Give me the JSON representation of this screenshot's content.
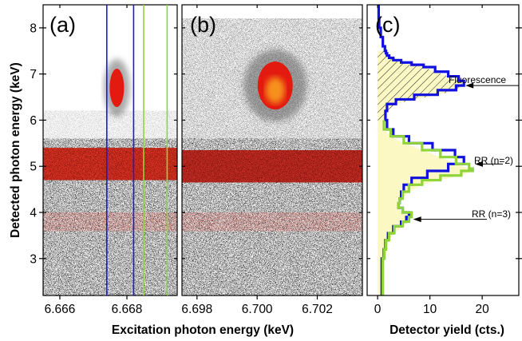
{
  "chart_data": [
    {
      "type": "heatmap",
      "panel_label": "(a)",
      "xlim": [
        6.6655,
        6.6695
      ],
      "ylim": [
        2.2,
        8.5
      ],
      "x_ticks": [
        "6.666",
        "6.668"
      ],
      "x_tick_values": [
        6.666,
        6.668
      ],
      "y_ticks": [
        "3",
        "4",
        "5",
        "6",
        "7",
        "8"
      ],
      "y_tick_values": [
        3,
        4,
        5,
        6,
        7,
        8
      ],
      "ylabel": "Detected photon energy (keV)",
      "gates": [
        {
          "color": "#1a1adb",
          "x": [
            6.6674,
            6.6682
          ]
        },
        {
          "color": "#8fd43a",
          "x": [
            6.6685,
            6.6692
          ]
        }
      ],
      "features": [
        {
          "kind": "band",
          "y_center": 5.05,
          "y_halfwidth": 0.35,
          "color": "#e02010"
        },
        {
          "kind": "spot",
          "x": 6.6677,
          "y": 6.7,
          "color": "#e52510"
        }
      ]
    },
    {
      "type": "heatmap",
      "panel_label": "(b)",
      "xlim": [
        6.6975,
        6.7035
      ],
      "ylim": [
        2.2,
        8.5
      ],
      "x_ticks": [
        "6.698",
        "6.700",
        "6.702"
      ],
      "x_tick_values": [
        6.698,
        6.7,
        6.702
      ],
      "xlabel": "Excitation photon energy (keV)",
      "features": [
        {
          "kind": "band",
          "y_center": 5.0,
          "y_halfwidth": 0.35,
          "color": "#c81a10"
        },
        {
          "kind": "spot",
          "x": 6.7006,
          "y": 6.75,
          "color": "#f07a10"
        }
      ]
    },
    {
      "type": "line",
      "panel_label": "(c)",
      "xlim": [
        -2,
        27
      ],
      "ylim": [
        2.2,
        8.5
      ],
      "x_ticks": [
        "0",
        "10",
        "20"
      ],
      "x_tick_values": [
        0,
        10,
        20
      ],
      "xlabel": "Detector yield (cts.)",
      "series": [
        {
          "color": "#1010e0",
          "x": [
            0.1,
            0.2,
            0.3,
            0.6,
            1.0,
            1.4,
            1.6,
            1.8,
            2.2,
            3.0,
            4.5,
            6.5,
            8.8,
            11.0,
            13.5,
            15.5,
            16.5,
            15.0,
            11.5,
            7.0,
            3.5,
            1.8,
            1.5,
            1.8,
            3.0,
            6.0,
            10.5,
            14.8,
            16.5,
            13.5,
            9.5,
            6.5,
            5.0,
            4.5,
            4.2,
            4.0,
            4.8,
            6.0,
            5.5,
            4.5,
            3.0,
            2.0,
            1.5,
            1.2,
            0.8
          ],
          "y": [
            8.5,
            8.2,
            8.0,
            7.8,
            7.6,
            7.5,
            7.45,
            7.4,
            7.35,
            7.3,
            7.25,
            7.2,
            7.15,
            7.05,
            6.95,
            6.85,
            6.75,
            6.65,
            6.55,
            6.45,
            6.35,
            6.2,
            6.0,
            5.8,
            5.65,
            5.5,
            5.35,
            5.2,
            5.05,
            4.9,
            4.75,
            4.6,
            4.45,
            4.3,
            4.2,
            4.1,
            4.0,
            3.9,
            3.8,
            3.7,
            3.55,
            3.4,
            3.2,
            3.0,
            2.2
          ]
        },
        {
          "color": "#8fd43a",
          "x": [
            1.2,
            1.2,
            2.5,
            5.0,
            8.5,
            12.0,
            15.0,
            17.5,
            18.2,
            16.0,
            12.0,
            8.5,
            6.0,
            4.8,
            4.2,
            4.0,
            4.8,
            6.5,
            6.0,
            4.8,
            3.2,
            2.2,
            1.6,
            1.3,
            1.0
          ],
          "y": [
            6.0,
            5.8,
            5.65,
            5.5,
            5.35,
            5.2,
            5.05,
            4.95,
            4.9,
            4.8,
            4.7,
            4.6,
            4.45,
            4.3,
            4.2,
            4.1,
            4.0,
            3.9,
            3.8,
            3.7,
            3.55,
            3.4,
            3.2,
            3.0,
            2.2
          ]
        }
      ],
      "annotations": [
        {
          "text": "Fluorescence",
          "x": 16.5,
          "y": 6.75
        },
        {
          "text": "RR (n=2)",
          "x": 17.5,
          "y": 5.05
        },
        {
          "text": "RR (n=3)",
          "x": 6.2,
          "y": 3.85
        }
      ]
    }
  ]
}
